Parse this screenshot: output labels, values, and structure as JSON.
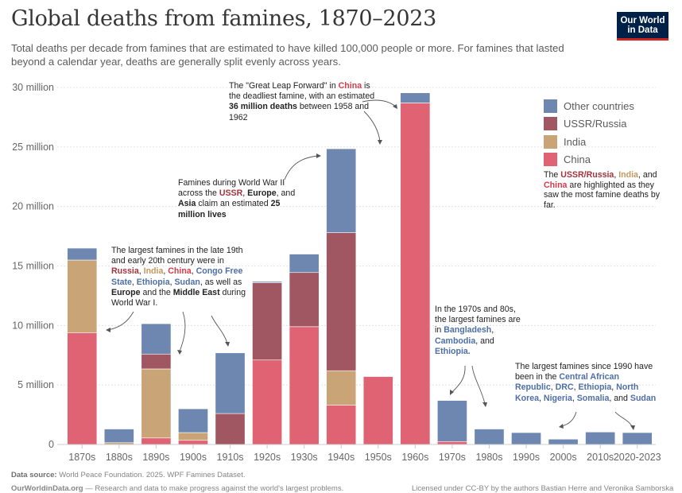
{
  "header": {
    "title": "Global deaths from famines, 1870–2023",
    "subtitle": "Total deaths per decade from famines that are estimated to have killed 100,000 people or more. For famines that lasted beyond a calendar year, deaths are generally split evenly across years.",
    "logo_line1": "Our World",
    "logo_line2": "in Data"
  },
  "colors": {
    "other": "#6d87b0",
    "ussr": "#a05761",
    "india": "#c8a477",
    "china": "#e06374",
    "axis": "#cccccc",
    "grid": "#dddddd"
  },
  "chart_data": {
    "type": "bar",
    "stacked": true,
    "title": "Global deaths from famines, 1870–2023",
    "xlabel": "",
    "ylabel": "",
    "ylim": [
      0,
      30000000
    ],
    "yticks": [
      0,
      5000000,
      10000000,
      15000000,
      20000000,
      25000000,
      30000000
    ],
    "ytick_labels": [
      "0",
      "5 million",
      "10 million",
      "15 million",
      "20 million",
      "25 million",
      "30 million"
    ],
    "grid": true,
    "legend_position": "right",
    "categories": [
      "1870s",
      "1880s",
      "1890s",
      "1900s",
      "1910s",
      "1920s",
      "1930s",
      "1940s",
      "1950s",
      "1960s",
      "1970s",
      "1980s",
      "1990s",
      "2000s",
      "2010s",
      "2020-2023"
    ],
    "series": [
      {
        "name": "China",
        "key": "china",
        "values": [
          9400000,
          0,
          550000,
          350000,
          0,
          7100000,
          9900000,
          3300000,
          5700000,
          28700000,
          250000,
          0,
          0,
          0,
          0,
          0
        ]
      },
      {
        "name": "India",
        "key": "india",
        "values": [
          6100000,
          150000,
          5800000,
          650000,
          0,
          0,
          0,
          2900000,
          0,
          0,
          0,
          0,
          0,
          0,
          0,
          0
        ]
      },
      {
        "name": "USSR/Russia",
        "key": "ussr",
        "values": [
          0,
          0,
          1250000,
          0,
          2600000,
          6500000,
          4550000,
          11600000,
          0,
          0,
          0,
          0,
          0,
          0,
          0,
          0
        ]
      },
      {
        "name": "Other countries",
        "key": "other",
        "values": [
          1000000,
          1150000,
          2550000,
          2000000,
          5100000,
          100000,
          1550000,
          7050000,
          50000,
          850000,
          3450000,
          1300000,
          1000000,
          450000,
          1050000,
          1000000
        ]
      }
    ],
    "legend": [
      "Other countries",
      "USSR/Russia",
      "India",
      "China"
    ],
    "legend_note": {
      "p1": "The ",
      "russia": "USSR/Russia",
      "p2": ", ",
      "india": "India",
      "p3": ", and ",
      "china": "China",
      "p4": " are highlighted as they saw the most famine deaths by far."
    },
    "annotations": {
      "early": {
        "t1": "The largest famines in the late 19th and early 20th century were in ",
        "russia": "Russia",
        "s1": ", ",
        "india": "India",
        "s2": ", ",
        "china": "China",
        "s3": ", ",
        "congo": "Congo Free State",
        "s4": ", ",
        "ethiopia": "Ethiopia",
        "s5": ", ",
        "sudan": "Sudan",
        "s6": ", as well as ",
        "europe": "Europe",
        "s7": " and the ",
        "mideast": "Middle East",
        "s8": " during World War I."
      },
      "ww2": {
        "t1": "Famines during World War II across the ",
        "ussr": "USSR",
        "s1": ", ",
        "europe": "Europe",
        "s2": ", and ",
        "asia": "Asia",
        "s3": " claim an estimated ",
        "lives": "25 million lives"
      },
      "glf": {
        "t1": "The \"Great Leap Forward\" in ",
        "china": "China",
        "t2": " is the deadliest famine, with an estimated ",
        "deaths": "36 million deaths",
        "t3": " between 1958 and 1962"
      },
      "seventies": {
        "t1": "In the 1970s and 80s, the largest famines are in ",
        "bangladesh": "Bangladesh",
        "s1": ", ",
        "cambodia": "Cambodia",
        "s2": ", and ",
        "ethiopia": "Ethiopia."
      },
      "since1990": {
        "t1": "The largest famines since 1990 have been in the ",
        "car": "Central African Republic",
        "s1": ", ",
        "drc": "DRC",
        "s2": ", ",
        "ethiopia": "Ethiopia",
        "s3": ", ",
        "nk": "North Korea",
        "s4": ", ",
        "nigeria": "Nigeria",
        "s5": ", ",
        "somalia": "Somalia",
        "s6": ", and ",
        "sudan": "Sudan"
      }
    }
  },
  "footer": {
    "source_label": "Data source:",
    "source_text": " World Peace Foundation. 2025. WPF Famines Dataset.",
    "site_label": "OurWorldinData.org",
    "site_text": " — Research and data to make progress against the world's largest problems.",
    "license": "Licensed under CC-BY by the authors Bastian Herre and Veronika Samborska"
  }
}
